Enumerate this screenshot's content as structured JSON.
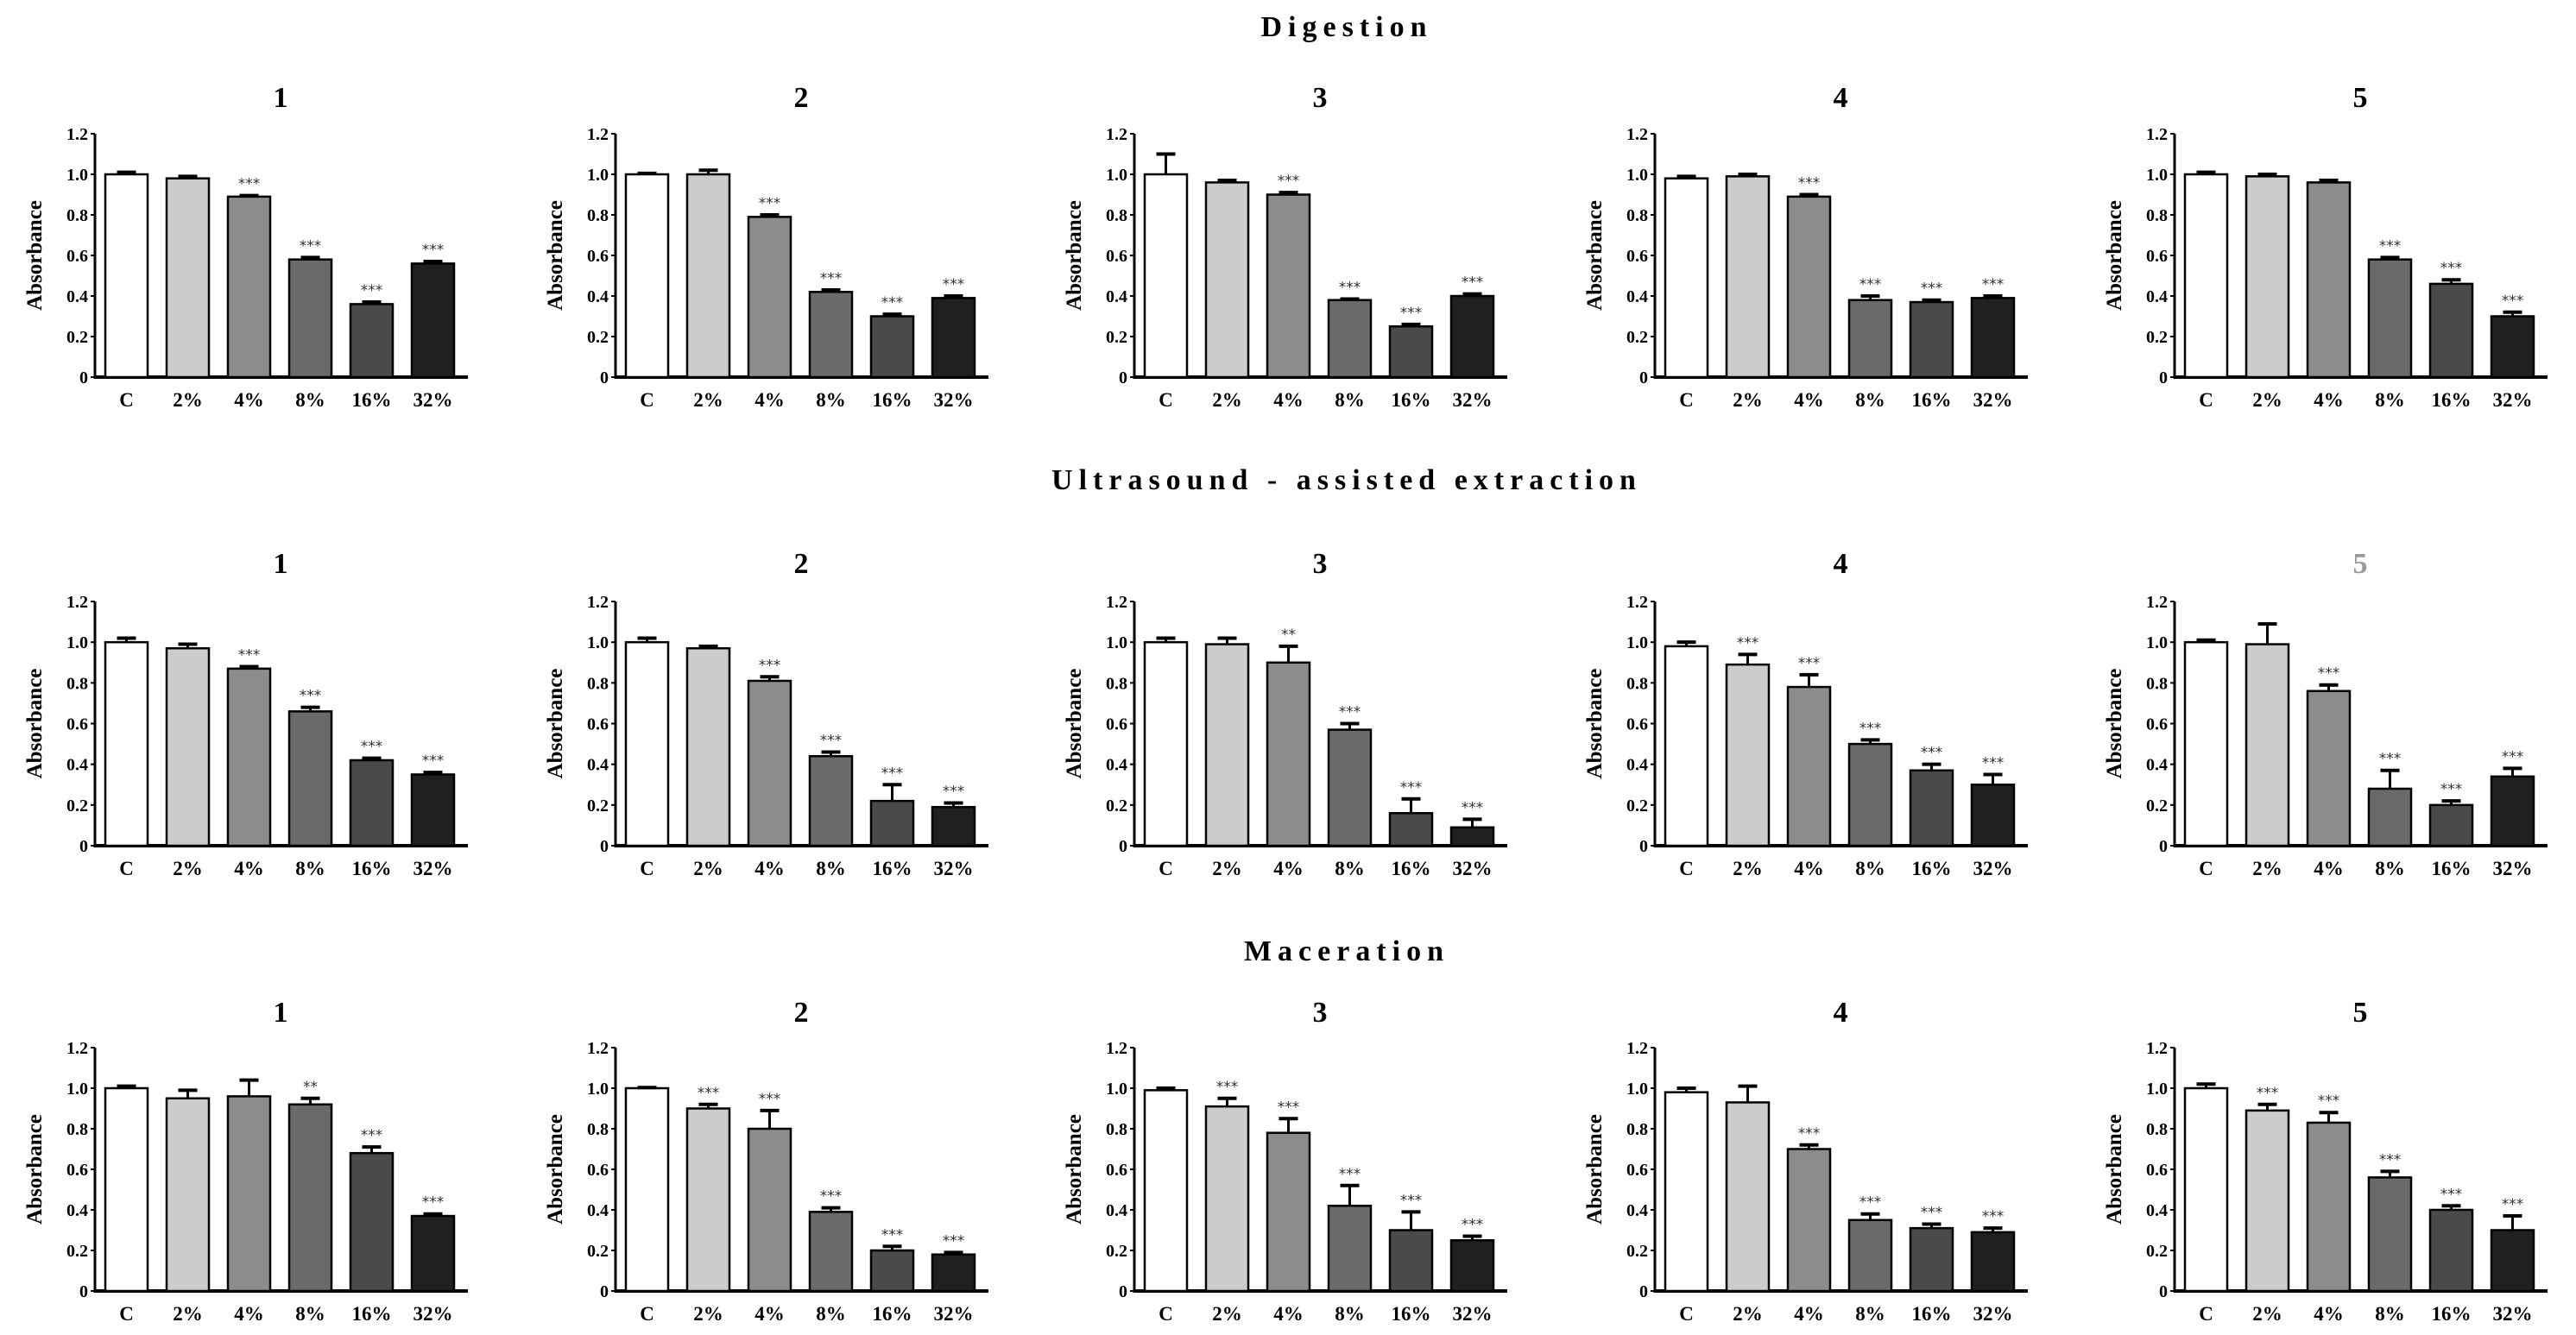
{
  "chart_data": [
    {
      "section": "Digestion",
      "type": "bar",
      "panels": [
        {
          "title": "1",
          "values": [
            1.0,
            0.98,
            0.89,
            0.58,
            0.36,
            0.56
          ],
          "errors": [
            0.01,
            0.01,
            0.005,
            0.01,
            0.01,
            0.01
          ],
          "stars": [
            "",
            "",
            "***",
            "***",
            "***",
            "***"
          ]
        },
        {
          "title": "2",
          "values": [
            1.0,
            1.0,
            0.79,
            0.42,
            0.3,
            0.39
          ],
          "errors": [
            0.005,
            0.02,
            0.01,
            0.01,
            0.01,
            0.01
          ],
          "stars": [
            "",
            "",
            "***",
            "***",
            "***",
            "***"
          ]
        },
        {
          "title": "3",
          "values": [
            1.0,
            0.96,
            0.9,
            0.38,
            0.25,
            0.4
          ],
          "errors": [
            0.1,
            0.01,
            0.01,
            0.005,
            0.01,
            0.01
          ],
          "stars": [
            "",
            "",
            "***",
            "***",
            "***",
            "***"
          ]
        },
        {
          "title": "4",
          "values": [
            0.98,
            0.99,
            0.89,
            0.38,
            0.37,
            0.39
          ],
          "errors": [
            0.01,
            0.01,
            0.01,
            0.02,
            0.01,
            0.01
          ],
          "stars": [
            "",
            "",
            "***",
            "***",
            "***",
            "***"
          ]
        },
        {
          "title": "5",
          "values": [
            1.0,
            0.99,
            0.96,
            0.58,
            0.46,
            0.3
          ],
          "errors": [
            0.01,
            0.01,
            0.01,
            0.01,
            0.02,
            0.02
          ],
          "stars": [
            "",
            "",
            "",
            "***",
            "***",
            "***"
          ]
        }
      ]
    },
    {
      "section": "Ultrasound - assisted extraction",
      "type": "bar",
      "panels": [
        {
          "title": "1",
          "values": [
            1.0,
            0.97,
            0.87,
            0.66,
            0.42,
            0.35
          ],
          "errors": [
            0.02,
            0.02,
            0.01,
            0.02,
            0.01,
            0.01
          ],
          "stars": [
            "",
            "",
            "***",
            "***",
            "***",
            "***"
          ]
        },
        {
          "title": "2",
          "values": [
            1.0,
            0.97,
            0.81,
            0.44,
            0.22,
            0.19
          ],
          "errors": [
            0.02,
            0.01,
            0.02,
            0.02,
            0.08,
            0.02
          ],
          "stars": [
            "",
            "",
            "***",
            "***",
            "***",
            "***"
          ]
        },
        {
          "title": "3",
          "values": [
            1.0,
            0.99,
            0.9,
            0.57,
            0.16,
            0.09
          ],
          "errors": [
            0.02,
            0.03,
            0.08,
            0.03,
            0.07,
            0.04
          ],
          "stars": [
            "",
            "",
            "**",
            "***",
            "***",
            "***"
          ]
        },
        {
          "title": "4",
          "values": [
            0.98,
            0.89,
            0.78,
            0.5,
            0.37,
            0.3
          ],
          "errors": [
            0.02,
            0.05,
            0.06,
            0.02,
            0.03,
            0.05
          ],
          "stars": [
            "",
            "***",
            "***",
            "***",
            "***",
            "***"
          ]
        },
        {
          "title": "5",
          "title_color": "#9a9a9a",
          "values": [
            1.0,
            0.99,
            0.76,
            0.28,
            0.2,
            0.34
          ],
          "errors": [
            0.01,
            0.1,
            0.03,
            0.09,
            0.02,
            0.04
          ],
          "stars": [
            "",
            "",
            "***",
            "***",
            "***",
            "***"
          ]
        }
      ]
    },
    {
      "section": "Maceration",
      "type": "bar",
      "panels": [
        {
          "title": "1",
          "values": [
            1.0,
            0.95,
            0.96,
            0.92,
            0.68,
            0.37
          ],
          "errors": [
            0.01,
            0.04,
            0.08,
            0.03,
            0.03,
            0.01
          ],
          "stars": [
            "",
            "",
            "",
            "**",
            "***",
            "***"
          ]
        },
        {
          "title": "2",
          "values": [
            1.0,
            0.9,
            0.8,
            0.39,
            0.2,
            0.18
          ],
          "errors": [
            0.003,
            0.02,
            0.09,
            0.02,
            0.02,
            0.01
          ],
          "stars": [
            "",
            "***",
            "***",
            "***",
            "***",
            "***"
          ]
        },
        {
          "title": "3",
          "values": [
            0.99,
            0.91,
            0.78,
            0.42,
            0.3,
            0.25
          ],
          "errors": [
            0.01,
            0.04,
            0.07,
            0.1,
            0.09,
            0.02
          ],
          "stars": [
            "",
            "***",
            "***",
            "***",
            "***",
            "***"
          ]
        },
        {
          "title": "4",
          "values": [
            0.98,
            0.93,
            0.7,
            0.35,
            0.31,
            0.29
          ],
          "errors": [
            0.02,
            0.08,
            0.02,
            0.03,
            0.02,
            0.02
          ],
          "stars": [
            "",
            "",
            "***",
            "***",
            "***",
            "***"
          ]
        },
        {
          "title": "5",
          "values": [
            1.0,
            0.89,
            0.83,
            0.56,
            0.4,
            0.3
          ],
          "errors": [
            0.02,
            0.03,
            0.05,
            0.03,
            0.02,
            0.07
          ],
          "stars": [
            "",
            "***",
            "***",
            "***",
            "***",
            "***"
          ]
        }
      ]
    }
  ],
  "categories": [
    "C",
    "2%",
    "4%",
    "8%",
    "16%",
    "32%"
  ],
  "ylabel": "Absorbance",
  "ylim": [
    0,
    1.2
  ],
  "yticks": [
    "0",
    "0.2",
    "0.4",
    "0.6",
    "0.8",
    "1.0",
    "1.2"
  ],
  "bar_colors": [
    "#ffffff",
    "#cccccc",
    "#8c8c8c",
    "#6a6a6a",
    "#4a4a4a",
    "#202020"
  ],
  "grid": false
}
